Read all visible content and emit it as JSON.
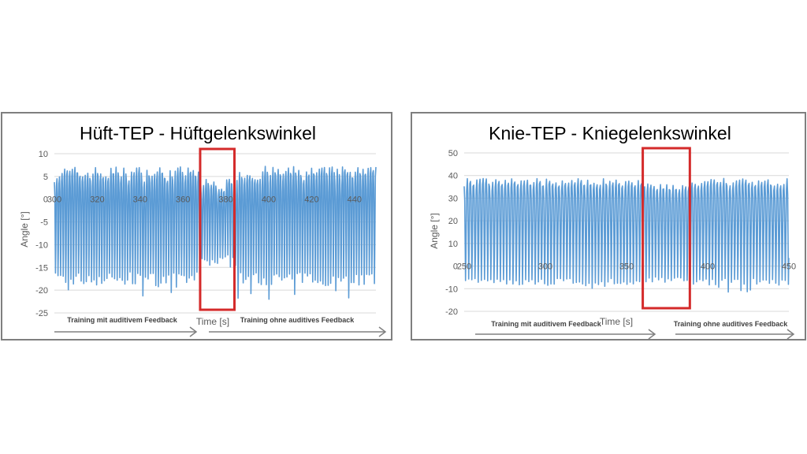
{
  "chart_data": [
    {
      "type": "line",
      "title": "Hüft-TEP - Hüftgelenkswinkel",
      "xlabel": "Time [s]",
      "ylabel": "Angle [°]",
      "xlim": [
        300,
        450
      ],
      "ylim": [
        -25,
        10
      ],
      "x_ticks": [
        "300",
        "320",
        "340",
        "360",
        "380",
        "400",
        "420",
        "440"
      ],
      "y_ticks": [
        "10",
        "5",
        "0",
        "-5",
        "-10",
        "-15",
        "-20",
        "-25"
      ],
      "series": [
        {
          "name": "Hüftgelenkswinkel",
          "color": "#5b9bd5",
          "cycle_period_s": 1.2,
          "typical_max": 5.5,
          "typical_min": -17.5,
          "highlight_max": 3,
          "highlight_min": -13.5
        }
      ],
      "highlight": {
        "x_start": 368,
        "x_end": 384,
        "color": "#d42a2a"
      },
      "annotations": {
        "left_label": "Training mit auditivem Feedback",
        "right_label": "Training ohne auditives Feedback"
      }
    },
    {
      "type": "line",
      "title": "Knie-TEP - Kniegelenkswinkel",
      "xlabel": "Time [s]",
      "ylabel": "Angle [°]",
      "xlim": [
        250,
        450
      ],
      "ylim": [
        -20,
        50
      ],
      "x_ticks": [
        "250",
        "300",
        "350",
        "400",
        "450"
      ],
      "y_ticks": [
        "50",
        "40",
        "30",
        "20",
        "10",
        "0",
        "-10",
        "-20"
      ],
      "series": [
        {
          "name": "Kniegelenkswinkel",
          "color": "#5b9bd5",
          "cycle_period_s": 1.95,
          "typical_max": 37,
          "typical_min": -7,
          "highlight_max": 35,
          "highlight_min": -6
        }
      ],
      "highlight": {
        "x_start": 360,
        "x_end": 389,
        "color": "#d42a2a"
      },
      "annotations": {
        "left_label": "Training mit auditivem Feedback",
        "right_label": "Training ohne auditives Feedback"
      }
    }
  ]
}
